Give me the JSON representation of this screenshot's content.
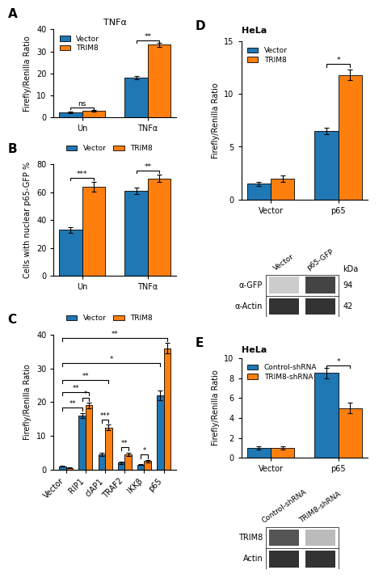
{
  "chart_data": [
    {
      "type": "bar",
      "panel": "A",
      "title": "TNFα",
      "categories": [
        "Un",
        "TNFα"
      ],
      "series": [
        {
          "name": "Vector",
          "values": [
            2.2,
            18.0
          ],
          "errors": [
            0.3,
            0.8
          ]
        },
        {
          "name": "TRIM8",
          "values": [
            3.0,
            33.0
          ],
          "errors": [
            0.4,
            0.8
          ]
        }
      ],
      "ylabel": "Firefly/Renilla Ratio",
      "ylim": [
        0,
        40
      ],
      "yticks": [
        0,
        10,
        20,
        30,
        40
      ],
      "legend": "upper left",
      "annotations": [
        {
          "text": "ns",
          "y": 3.6,
          "from": {
            "category": "Un",
            "series": "Vector"
          },
          "to": {
            "category": "Un",
            "series": "TRIM8"
          }
        },
        {
          "text": "**",
          "y": 34.0,
          "from": {
            "category": "TNFα",
            "series": "Vector"
          },
          "to": {
            "category": "TNFα",
            "series": "TRIM8"
          }
        }
      ]
    },
    {
      "type": "bar",
      "panel": "B",
      "categories": [
        "Un",
        "TNFα"
      ],
      "series": [
        {
          "name": "Vector",
          "values": [
            33.0,
            61.0
          ],
          "errors": [
            2.0,
            2.5
          ]
        },
        {
          "name": "TRIM8",
          "values": [
            64.0,
            70.0
          ],
          "errors": [
            3.5,
            2.5
          ]
        }
      ],
      "ylabel": "Cells with nuclear p65-GFP %",
      "ylim": [
        0,
        80
      ],
      "yticks": [
        0,
        20,
        40,
        60,
        80
      ],
      "legend": "above",
      "annotations": [
        {
          "text": "***",
          "y": 68.5,
          "from": {
            "category": "Un",
            "series": "Vector"
          },
          "to": {
            "category": "Un",
            "series": "TRIM8"
          }
        },
        {
          "text": "**",
          "y": 73.5,
          "from": {
            "category": "TNFα",
            "series": "Vector"
          },
          "to": {
            "category": "TNFα",
            "series": "TRIM8"
          }
        }
      ]
    },
    {
      "type": "bar",
      "panel": "C",
      "categories": [
        "Vector",
        "RIP1",
        "cIAP1",
        "TRAF2",
        "IKKβ",
        "p65"
      ],
      "series": [
        {
          "name": "Vector",
          "values": [
            1.0,
            16.0,
            4.5,
            2.0,
            1.5,
            22.0
          ],
          "errors": [
            0.1,
            0.8,
            0.5,
            0.3,
            0.2,
            1.5
          ]
        },
        {
          "name": "TRIM8",
          "values": [
            0.5,
            19.0,
            12.5,
            4.5,
            2.5,
            36.0
          ],
          "errors": [
            0.1,
            0.8,
            0.8,
            0.4,
            0.3,
            1.5
          ]
        }
      ],
      "ylabel": "Firefly/Renilla Ratio",
      "ylim": [
        0,
        40
      ],
      "yticks": [
        0,
        10,
        20,
        30,
        40
      ],
      "legend": "above",
      "annotations": [
        {
          "text": "*",
          "y": 20.2,
          "from": {
            "category": "RIP1",
            "series": "Vector"
          },
          "to": {
            "category": "RIP1",
            "series": "TRIM8"
          }
        },
        {
          "text": "**",
          "y": 17.5,
          "from": {
            "category": "Vector",
            "series": "Vector"
          },
          "to": {
            "category": "RIP1",
            "series": "Vector"
          }
        },
        {
          "text": "**",
          "y": 22.0,
          "from": {
            "category": "Vector",
            "series": "Vector"
          },
          "to": {
            "category": "RIP1",
            "series": "TRIM8"
          }
        },
        {
          "text": "***",
          "y": 13.8,
          "from": {
            "category": "cIAP1",
            "series": "Vector"
          },
          "to": {
            "category": "cIAP1",
            "series": "TRIM8"
          }
        },
        {
          "text": "**",
          "y": 25.5,
          "from": {
            "category": "Vector",
            "series": "Vector"
          },
          "to": {
            "category": "cIAP1",
            "series": "TRIM8"
          }
        },
        {
          "text": "**",
          "y": 5.6,
          "from": {
            "category": "TRAF2",
            "series": "Vector"
          },
          "to": {
            "category": "TRAF2",
            "series": "TRIM8"
          }
        },
        {
          "text": "*",
          "y": 3.4,
          "from": {
            "category": "IKKβ",
            "series": "Vector"
          },
          "to": {
            "category": "IKKβ",
            "series": "TRIM8"
          }
        },
        {
          "text": "*",
          "y": 30.5,
          "from": {
            "category": "Vector",
            "series": "Vector"
          },
          "to": {
            "category": "p65",
            "series": "Vector"
          }
        },
        {
          "text": "**",
          "y": 38.0,
          "from": {
            "category": "Vector",
            "series": "Vector"
          },
          "to": {
            "category": "p65",
            "series": "TRIM8"
          }
        }
      ]
    },
    {
      "type": "bar",
      "panel": "D",
      "subtitle": "HeLa",
      "categories": [
        "Vector",
        "p65"
      ],
      "series": [
        {
          "name": "Vector",
          "values": [
            1.5,
            6.5
          ],
          "errors": [
            0.2,
            0.3
          ]
        },
        {
          "name": "TRIM8",
          "values": [
            2.0,
            11.8
          ],
          "errors": [
            0.3,
            0.5
          ]
        }
      ],
      "ylabel": "Firefly/Renilla Ratio",
      "ylim": [
        0,
        15
      ],
      "yticks": [
        0,
        5,
        10,
        15
      ],
      "legend": "upper left",
      "annotations": [
        {
          "text": "*",
          "y": 12.5,
          "from": {
            "category": "p65",
            "series": "Vector"
          },
          "to": {
            "category": "p65",
            "series": "TRIM8"
          }
        }
      ]
    },
    {
      "type": "blot",
      "categories": [
        "Vector",
        "p65-GFP"
      ],
      "rows": [
        "α-GFP",
        "α-Actin"
      ],
      "row_sizes": [
        94,
        42
      ],
      "size_unit": "kDa",
      "colors": [
        [
          "#cccccc",
          "#444444"
        ],
        [
          "#333333",
          "#333333"
        ]
      ]
    },
    {
      "type": "bar",
      "panel": "E",
      "subtitle": "HeLa",
      "categories": [
        "Vector",
        "p65"
      ],
      "series": [
        {
          "name": "Control-shRNA",
          "values": [
            1.0,
            8.5
          ],
          "errors": [
            0.15,
            0.5
          ]
        },
        {
          "name": "TRIM8-shRNA",
          "values": [
            1.0,
            5.0
          ],
          "errors": [
            0.15,
            0.5
          ]
        }
      ],
      "ylabel": "Firefly/Renilla Ratio",
      "ylim": [
        0,
        10
      ],
      "yticks": [
        0,
        2,
        4,
        6,
        8,
        10
      ],
      "legend": "upper left",
      "annotations": [
        {
          "text": "*",
          "y": 9.0,
          "from": {
            "category": "p65",
            "series": "Control-shRNA"
          },
          "to": {
            "category": "p65",
            "series": "TRIM8-shRNA"
          }
        }
      ]
    },
    {
      "type": "blot",
      "categories": [
        "Control-shRNA",
        "TRIM8-shRNA"
      ],
      "rows": [
        "TRIM8",
        "Actin"
      ],
      "colors": [
        [
          "#555555",
          "#bbbbbb"
        ],
        [
          "#333333",
          "#333333"
        ]
      ]
    }
  ]
}
